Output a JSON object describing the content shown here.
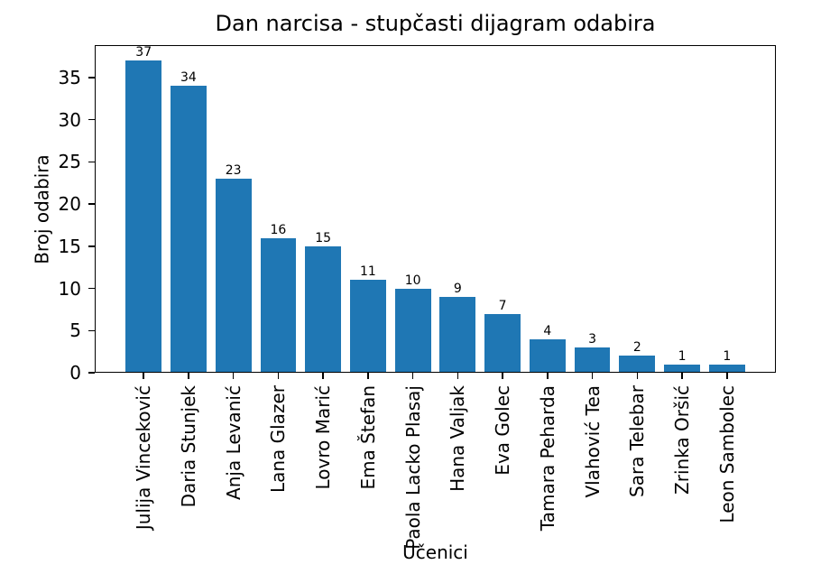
{
  "figure": {
    "background": "#ffffff"
  },
  "chart_data": {
    "type": "bar",
    "title": "Dan narcisa - stupčasti dijagram odabira",
    "xlabel": "Učenici",
    "ylabel": "Broj odabira",
    "categories": [
      "Julija Vinceković",
      "Daria Stunjek",
      "Anja Levanić",
      "Lana Glazer",
      "Lovro Marić",
      "Ema Štefan",
      "Paola Lacko Plasaj",
      "Hana Valjak",
      "Eva Golec",
      "Tamara Peharda",
      "Vlahović Tea",
      "Sara Telebar",
      "Zrinka Oršić",
      "Leon Sambolec"
    ],
    "values": [
      37,
      34,
      23,
      16,
      15,
      11,
      10,
      9,
      7,
      4,
      3,
      2,
      1,
      1
    ],
    "value_labels": [
      "37",
      "34",
      "23",
      "16",
      "15",
      "11",
      "10",
      "9",
      "7",
      "4",
      "3",
      "2",
      "1",
      "1"
    ],
    "bar_color": "#1f77b4",
    "axis_color": "#000000",
    "text_color": "#000000",
    "yticks": [
      0,
      5,
      10,
      15,
      20,
      25,
      30,
      35
    ],
    "ylim": [
      0,
      38.85
    ],
    "xlim": [
      -1.09,
      14.09
    ],
    "bar_width": 0.8,
    "grid": false,
    "legend_position": "none"
  }
}
